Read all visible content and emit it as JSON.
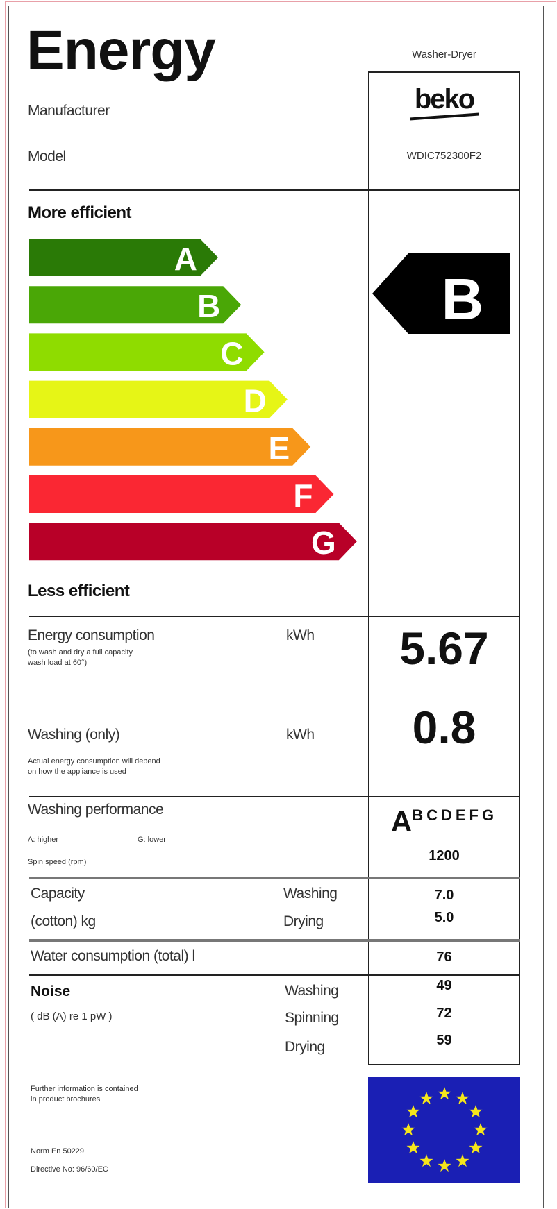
{
  "header": {
    "title": "Energy",
    "appliance_type": "Washer-Dryer",
    "manufacturer_label": "Manufacturer",
    "model_label": "Model",
    "brand": "beko",
    "model": "WDIC752300F2"
  },
  "scale": {
    "top_label": "More efficient",
    "bottom_label": "Less efficient",
    "classes": [
      {
        "letter": "A",
        "color": "#2a7a06"
      },
      {
        "letter": "B",
        "color": "#4aa706"
      },
      {
        "letter": "C",
        "color": "#8fdc00"
      },
      {
        "letter": "D",
        "color": "#e6f516"
      },
      {
        "letter": "E",
        "color": "#f7971a"
      },
      {
        "letter": "F",
        "color": "#fa2733"
      },
      {
        "letter": "G",
        "color": "#b80028"
      }
    ],
    "rating": "B"
  },
  "energy": {
    "label": "Energy consumption",
    "unit": "kWh",
    "note_line1": "(to wash and dry a full capacity",
    "note_line2": "wash load at 60°)",
    "value": "5.67"
  },
  "washing_only": {
    "label": "Washing (only)",
    "unit": "kWh",
    "note_line1": "Actual energy consumption will depend",
    "note_line2": "on how the appliance is used",
    "value": "0.8"
  },
  "performance": {
    "label": "Washing performance",
    "higher": "A: higher",
    "lower": "G: lower",
    "spin_label": "Spin speed (rpm)",
    "rating_big": "A",
    "rating_rest": "BCDEFG",
    "spin_value": "1200"
  },
  "capacity": {
    "label1": "Capacity",
    "label2": "(cotton) kg",
    "washing_label": "Washing",
    "drying_label": "Drying",
    "washing_value": "7.0",
    "drying_value": "5.0"
  },
  "water": {
    "label": "Water consumption (total)",
    "unit": "l",
    "value": "76"
  },
  "noise": {
    "label": "Noise",
    "unit": "( dB (A) re 1 pW )",
    "washing_label": "Washing",
    "spinning_label": "Spinning",
    "drying_label": "Drying",
    "washing_value": "49",
    "spinning_value": "72",
    "drying_value": "59"
  },
  "footer": {
    "info_line1": "Further information is contained",
    "info_line2": "in product brochures",
    "norm": "Norm En 50229",
    "directive": "Directive No: 96/60/EC"
  },
  "flag": {
    "background": "#1a1fb4",
    "star_color": "#f5e51b"
  }
}
